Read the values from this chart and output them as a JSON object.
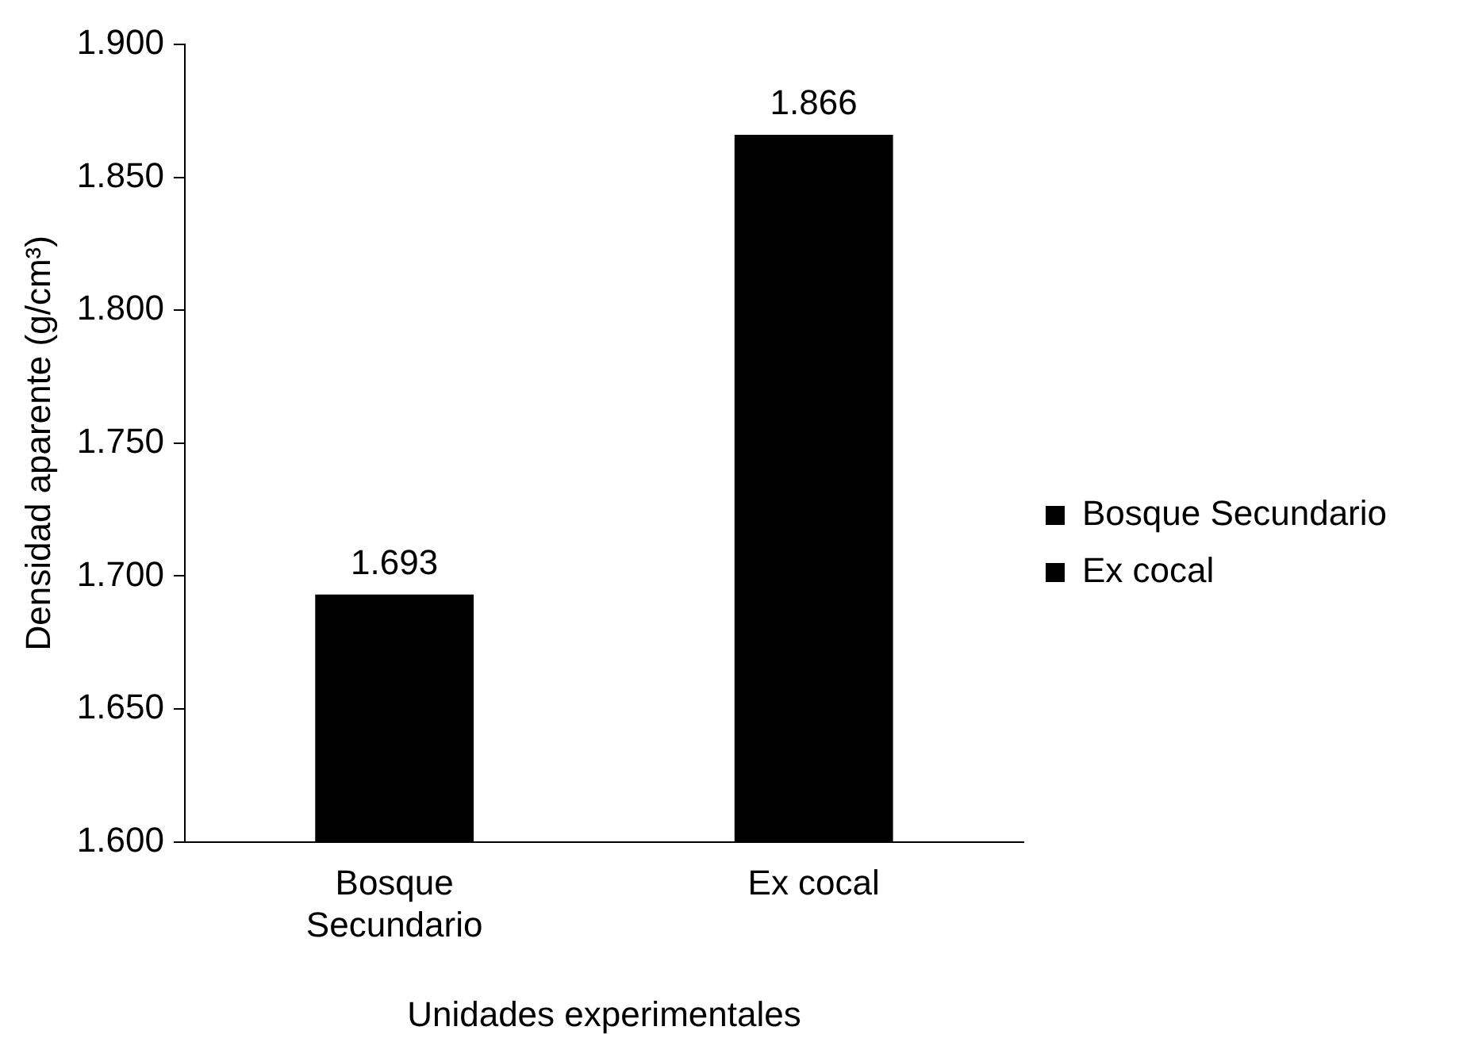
{
  "chart_data": {
    "type": "bar",
    "xlabel": "Unidades experimentales",
    "ylabel": "Densidad aparente (g/cm³)",
    "categories": [
      "Bosque Secundario",
      "Ex cocal"
    ],
    "series": [
      {
        "name": "Bosque Secundario",
        "color": "#000000",
        "values": [
          1.693,
          null
        ]
      },
      {
        "name": "Ex cocal",
        "color": "#000000",
        "values": [
          null,
          1.866
        ]
      }
    ],
    "ylim": [
      1.6,
      1.9
    ],
    "yticks": [
      {
        "value": 1.6,
        "label": "1.600"
      },
      {
        "value": 1.65,
        "label": "1.650"
      },
      {
        "value": 1.7,
        "label": "1.700"
      },
      {
        "value": 1.75,
        "label": "1.750"
      },
      {
        "value": 1.8,
        "label": "1.800"
      },
      {
        "value": 1.85,
        "label": "1.850"
      },
      {
        "value": 1.9,
        "label": "1.900"
      }
    ],
    "data_labels": true,
    "legend": "right"
  }
}
